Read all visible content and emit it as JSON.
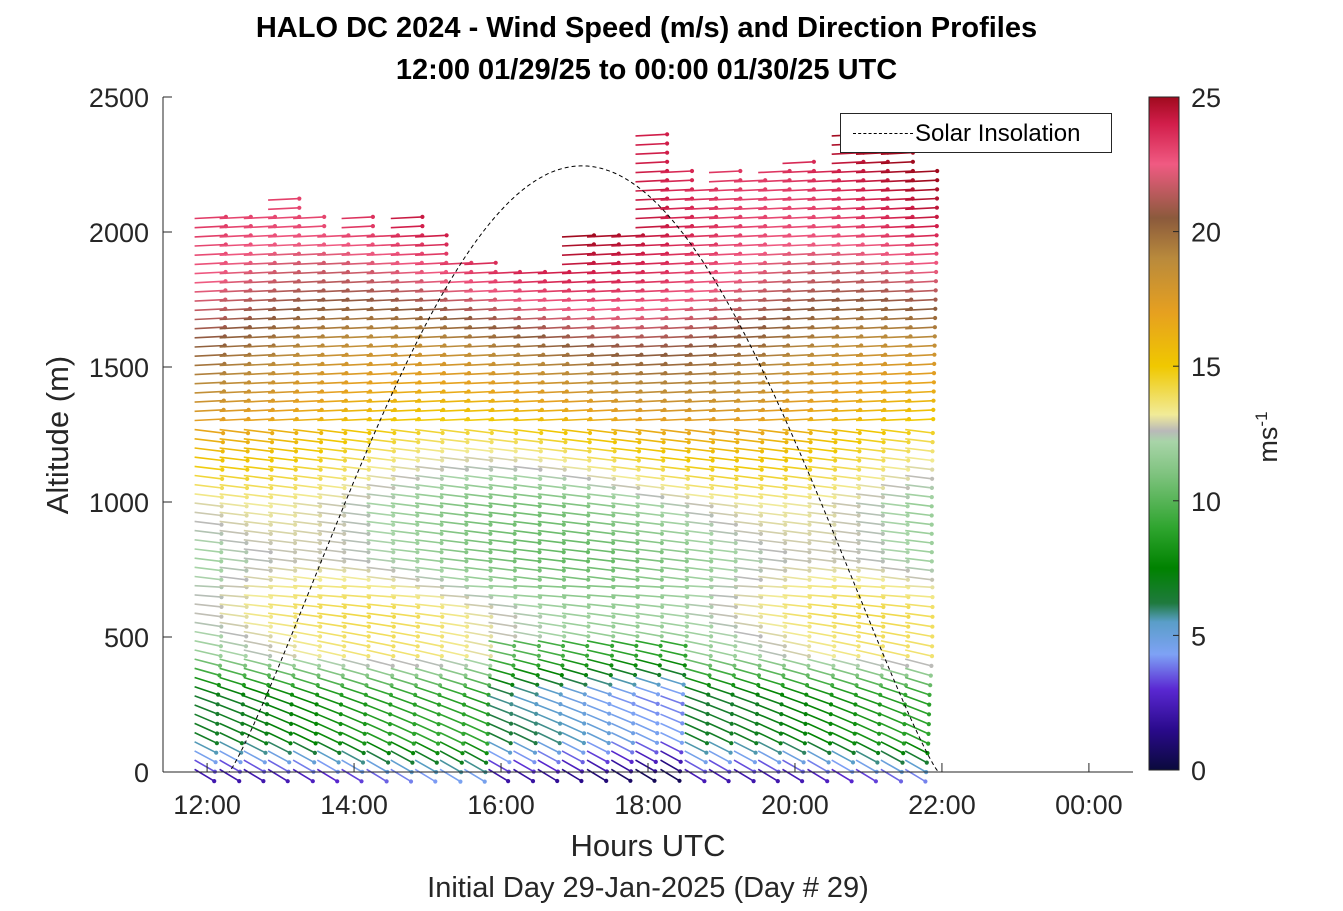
{
  "figure": {
    "title_line1": "HALO DC 2024 - Wind Speed (m/s) and Direction Profiles",
    "title_line2": "12:00 01/29/25 to 00:00 01/30/25  UTC",
    "xlabel": "Hours UTC",
    "xsublabel": "Initial Day 29-Jan-2025 (Day # 29)",
    "ylabel": "Altitude (m)",
    "colorbar_label_base": "ms",
    "colorbar_label_exp": "-1",
    "legend_label": "Solar Insolation"
  },
  "chart_data": {
    "type": "scatter",
    "subtype": "wind barb / arrow profile time-height plot",
    "title": "HALO DC 2024 - Wind Speed (m/s) and Direction Profiles",
    "subtitle": "12:00 01/29/25 to 00:00 01/30/25  UTC",
    "xlabel": "Hours UTC",
    "ylabel": "Altitude (m)",
    "xlim_hours": [
      11.4,
      24.6
    ],
    "ylim": [
      0,
      2500
    ],
    "x_ticks": [
      12,
      14,
      16,
      18,
      20,
      22,
      24
    ],
    "x_tick_labels": [
      "12:00",
      "14:00",
      "16:00",
      "18:00",
      "20:00",
      "22:00",
      "00:00"
    ],
    "y_ticks": [
      0,
      500,
      1000,
      1500,
      2000,
      2500
    ],
    "y_tick_labels": [
      "0",
      "500",
      "1000",
      "1500",
      "2000",
      "2500"
    ],
    "colorbar": {
      "range": [
        0,
        25
      ],
      "ticks": [
        0,
        5,
        10,
        15,
        20,
        25
      ],
      "tick_labels": [
        "0",
        "5",
        "10",
        "15",
        "20",
        "25"
      ],
      "label": "ms-1",
      "stops": [
        {
          "v": 0,
          "c": "#0a0a3c"
        },
        {
          "v": 1.5,
          "c": "#2a0a8c"
        },
        {
          "v": 3,
          "c": "#5a28d2"
        },
        {
          "v": 4.3,
          "c": "#7ea2f5"
        },
        {
          "v": 5.5,
          "c": "#5a9ec8"
        },
        {
          "v": 6.2,
          "c": "#1f7a3e"
        },
        {
          "v": 7.5,
          "c": "#008200"
        },
        {
          "v": 9,
          "c": "#2fa52f"
        },
        {
          "v": 11,
          "c": "#7fc37f"
        },
        {
          "v": 12.2,
          "c": "#a8d4a8"
        },
        {
          "v": 12.6,
          "c": "#b9b9b9"
        },
        {
          "v": 13.2,
          "c": "#f1eb98"
        },
        {
          "v": 15,
          "c": "#f0c800"
        },
        {
          "v": 17,
          "c": "#e6a020"
        },
        {
          "v": 19,
          "c": "#b98a3c"
        },
        {
          "v": 20.5,
          "c": "#8b5a3c"
        },
        {
          "v": 22.5,
          "c": "#f05a82"
        },
        {
          "v": 24,
          "c": "#d21e4b"
        },
        {
          "v": 25,
          "c": "#a00a1e"
        }
      ]
    },
    "profile_times_hours": [
      11.83,
      12.17,
      12.5,
      12.83,
      13.17,
      13.5,
      13.83,
      14.17,
      14.5,
      14.83,
      15.17,
      15.5,
      15.83,
      16.17,
      16.5,
      16.83,
      17.17,
      17.5,
      17.83,
      18.17,
      18.5,
      18.83,
      19.17,
      19.5,
      19.83,
      20.17,
      20.5,
      20.83,
      21.17,
      21.5
    ],
    "profile_top_altitudes": [
      2050,
      2050,
      2050,
      2150,
      2050,
      2000,
      2050,
      2000,
      2050,
      2000,
      1900,
      1900,
      1850,
      1850,
      1850,
      2000,
      2000,
      2000,
      2380,
      2230,
      2170,
      2230,
      2200,
      2230,
      2280,
      2230,
      2370,
      2370,
      2330,
      2230
    ],
    "wind_speed_profile": [
      {
        "z": 0,
        "speed": 3
      },
      {
        "z": 50,
        "speed": 4.8
      },
      {
        "z": 150,
        "speed": 8
      },
      {
        "z": 300,
        "speed": 7.5
      },
      {
        "z": 450,
        "speed": 12.5
      },
      {
        "z": 600,
        "speed": 13
      },
      {
        "z": 800,
        "speed": 11.5
      },
      {
        "z": 1000,
        "speed": 12
      },
      {
        "z": 1200,
        "speed": 14.5
      },
      {
        "z": 1400,
        "speed": 17.5
      },
      {
        "z": 1600,
        "speed": 20
      },
      {
        "z": 1800,
        "speed": 22.5
      },
      {
        "z": 2000,
        "speed": 24
      },
      {
        "z": 2400,
        "speed": 25
      }
    ],
    "solar_insolation": {
      "label": "Solar Insolation",
      "style": "dashed",
      "t_start_hours": 12.3,
      "t_end_hours": 21.95,
      "t_peak_hours": 17.1,
      "peak_altitude_equivalent": 2245
    },
    "legend_placement": "top-right",
    "grid": false
  }
}
